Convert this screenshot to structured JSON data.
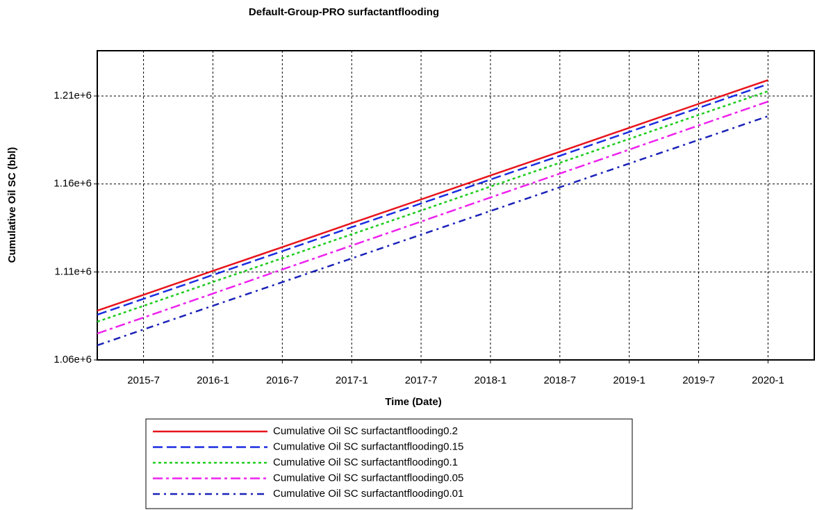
{
  "chart_data": {
    "type": "line",
    "title": "Default-Group-PRO surfactantflooding",
    "x_label": "Time (Date)",
    "y_label": "Cumulative Oil SC (bbl)",
    "x": [
      "2015-3",
      "2015-7",
      "2016-1",
      "2016-7",
      "2017-1",
      "2017-7",
      "2018-1",
      "2018-7",
      "2019-1",
      "2019-7",
      "2020-1"
    ],
    "xlim": [
      "2015-3",
      "2020-5"
    ],
    "xticks": [
      "2015-7",
      "2016-1",
      "2016-7",
      "2017-1",
      "2017-7",
      "2018-1",
      "2018-7",
      "2019-1",
      "2019-7",
      "2020-1"
    ],
    "ylim": [
      1060000,
      1235700
    ],
    "yticks": [
      {
        "value": 1060000,
        "label": "1.06e+6"
      },
      {
        "value": 1110000,
        "label": "1.11e+6"
      },
      {
        "value": 1160000,
        "label": "1.16e+6"
      },
      {
        "value": 1210000,
        "label": "1.21e+6"
      }
    ],
    "grid": true,
    "legend": "bottom",
    "series": [
      {
        "name": "Cumulative Oil SC surfactantflooding0.2",
        "color": "#e8141c",
        "style": "solid",
        "values": [
          1088000,
          1097000,
          1110600,
          1124100,
          1137700,
          1151200,
          1164800,
          1178300,
          1191900,
          1205500,
          1219000
        ]
      },
      {
        "name": "Cumulative Oil SC surfactantflooding0.15",
        "color": "#1a2ce0",
        "style": "dashed",
        "values": [
          1085700,
          1094700,
          1108300,
          1121800,
          1135400,
          1148900,
          1162500,
          1176000,
          1189600,
          1203200,
          1216700
        ]
      },
      {
        "name": "Cumulative Oil SC surfactantflooding0.1",
        "color": "#1ccc1c",
        "style": "dotted",
        "values": [
          1081700,
          1090700,
          1104300,
          1117800,
          1131400,
          1144900,
          1158500,
          1172000,
          1185600,
          1199200,
          1212700
        ]
      },
      {
        "name": "Cumulative Oil SC surfactantflooding0.05",
        "color": "#ee22ee",
        "style": "dashdot",
        "values": [
          1075000,
          1084100,
          1097700,
          1111400,
          1125000,
          1138600,
          1152300,
          1165900,
          1179500,
          1193200,
          1206800
        ]
      },
      {
        "name": "Cumulative Oil SC surfactantflooding0.01",
        "color": "#1a22b8",
        "style": "dashdotsparse",
        "values": [
          1068300,
          1077300,
          1090800,
          1104200,
          1117700,
          1131200,
          1144600,
          1158100,
          1171600,
          1185000,
          1198500
        ]
      }
    ]
  }
}
